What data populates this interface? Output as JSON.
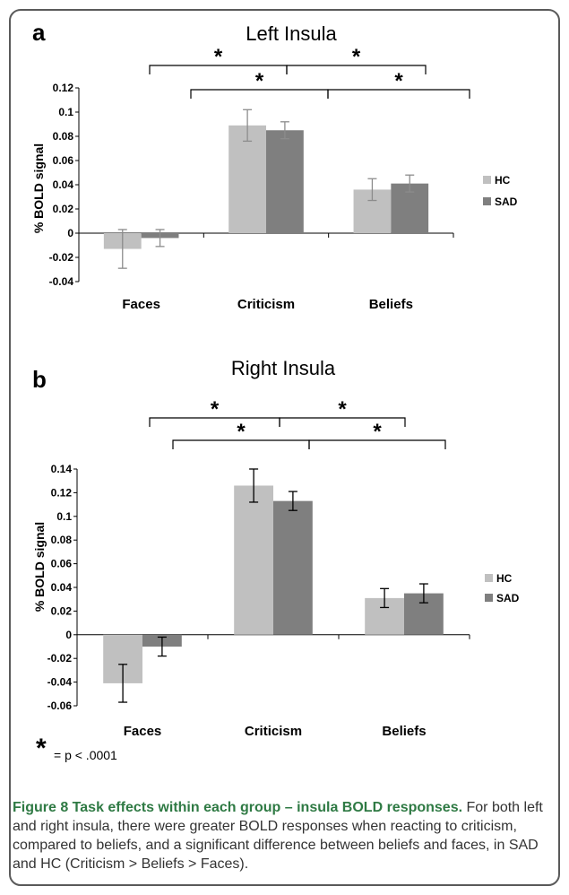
{
  "figure": {
    "caption_title": "Figure 8 Task effects within each group – insula BOLD responses.",
    "caption_body": " For both left and right insula, there were greater BOLD responses when reacting to criticism, compared to beliefs, and a significant difference between beliefs and faces, in SAD and HC (Criticism > Beliefs > Faces).",
    "significance_star": "*",
    "significance_note": "= p < .0001"
  },
  "colors": {
    "hc": "#c0c0c0",
    "sad": "#7f7f7f",
    "frame": "#5a5a5a",
    "caption_title": "#2f7a44"
  },
  "chart_data": [
    {
      "panel_label": "a",
      "type": "bar",
      "title": "Left Insula",
      "ylabel": "% BOLD signal",
      "xlabel": "",
      "categories": [
        "Faces",
        "Criticism",
        "Beliefs"
      ],
      "ylim": [
        -0.04,
        0.12
      ],
      "yticks": [
        -0.04,
        -0.02,
        0,
        0.02,
        0.04,
        0.06,
        0.08,
        0.1,
        0.12
      ],
      "ytick_labels": [
        "-0.04",
        "-0.02",
        "0",
        "0.02",
        "0.04",
        "0.06",
        "0.08",
        "0.1",
        "0.12"
      ],
      "series": [
        {
          "name": "HC",
          "values": [
            -0.013,
            0.089,
            0.036
          ],
          "errors": [
            0.016,
            0.013,
            0.009
          ]
        },
        {
          "name": "SAD",
          "values": [
            -0.004,
            0.085,
            0.041
          ],
          "errors": [
            0.007,
            0.007,
            0.007
          ]
        }
      ],
      "error_bar_color": "#8c8c8c",
      "legend_position": "right",
      "significance": [
        {
          "from": "Faces",
          "to": "Criticism",
          "label": "*"
        },
        {
          "from": "Criticism",
          "to": "Beliefs",
          "label": "*"
        },
        {
          "from": "Faces",
          "to": "Criticism",
          "label": "*"
        },
        {
          "from": "Criticism",
          "to": "Beliefs",
          "label": "*"
        }
      ]
    },
    {
      "panel_label": "b",
      "type": "bar",
      "title": "Right Insula",
      "ylabel": "% BOLD signal",
      "xlabel": "",
      "categories": [
        "Faces",
        "Criticism",
        "Beliefs"
      ],
      "ylim": [
        -0.06,
        0.14
      ],
      "yticks": [
        -0.06,
        -0.04,
        -0.02,
        0,
        0.02,
        0.04,
        0.06,
        0.08,
        0.1,
        0.12,
        0.14
      ],
      "ytick_labels": [
        "-0.06",
        "-0.04",
        "-0.02",
        "0",
        "0.02",
        "0.04",
        "0.06",
        "0.08",
        "0.1",
        "0.12",
        "0.14"
      ],
      "series": [
        {
          "name": "HC",
          "values": [
            -0.041,
            0.126,
            0.031
          ],
          "errors": [
            0.016,
            0.014,
            0.008
          ]
        },
        {
          "name": "SAD",
          "values": [
            -0.01,
            0.113,
            0.035
          ],
          "errors": [
            0.008,
            0.008,
            0.008
          ]
        }
      ],
      "error_bar_color": "#000000",
      "legend_position": "right",
      "significance": [
        {
          "from": "Faces",
          "to": "Criticism",
          "label": "*"
        },
        {
          "from": "Criticism",
          "to": "Beliefs",
          "label": "*"
        },
        {
          "from": "Faces",
          "to": "Criticism",
          "label": "*"
        },
        {
          "from": "Criticism",
          "to": "Beliefs",
          "label": "*"
        }
      ]
    }
  ]
}
